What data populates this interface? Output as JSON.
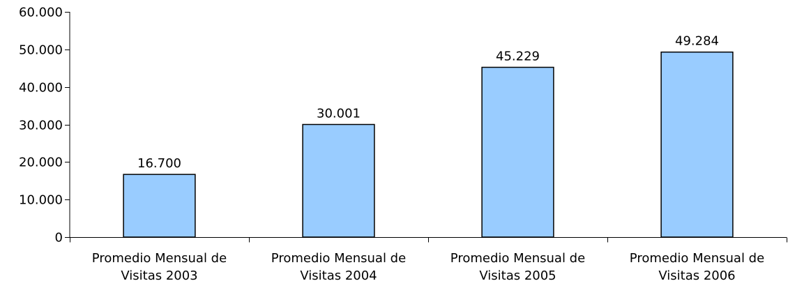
{
  "chart_data": {
    "type": "bar",
    "categories": [
      [
        "Promedio Mensual de",
        "Visitas 2003"
      ],
      [
        "Promedio Mensual de",
        "Visitas 2004"
      ],
      [
        "Promedio Mensual de",
        "Visitas 2005"
      ],
      [
        "Promedio Mensual de",
        "Visitas 2006"
      ]
    ],
    "values": [
      16700,
      30001,
      45229,
      49284
    ],
    "value_labels": [
      "16.700",
      "30.001",
      "45.229",
      "49.284"
    ],
    "title": "",
    "xlabel": "",
    "ylabel": "",
    "ylim": [
      0,
      60000
    ],
    "yticks": [
      0,
      10000,
      20000,
      30000,
      40000,
      50000,
      60000
    ],
    "ytick_labels": [
      "0",
      "10.000",
      "20.000",
      "30.000",
      "40.000",
      "50.000",
      "60.000"
    ],
    "grid": false,
    "legend": "none",
    "bar_color": "#99ccff",
    "bar_border_color": "#000000"
  }
}
